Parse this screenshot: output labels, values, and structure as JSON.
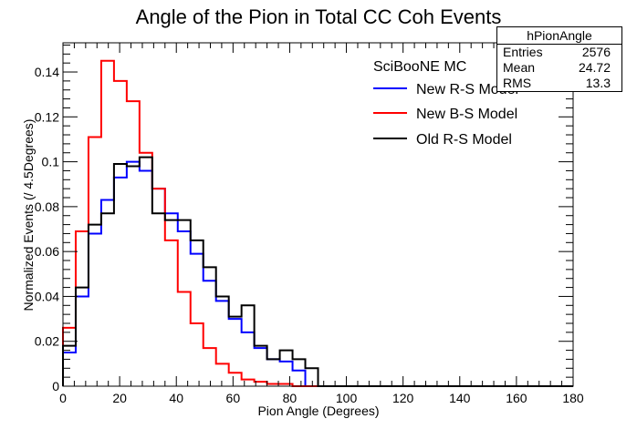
{
  "chart_data": {
    "type": "line",
    "title": "Angle of the Pion in Total CC Coh Events",
    "xlabel": "Pion Angle (Degrees)",
    "ylabel": "Normalized Events (/ 4.5Degrees)",
    "xlim": [
      0,
      180
    ],
    "ylim": [
      0,
      0.153
    ],
    "xticks": [
      0,
      20,
      40,
      60,
      80,
      100,
      120,
      140,
      160,
      180
    ],
    "yticks": [
      0,
      0.02,
      0.04,
      0.06,
      0.08,
      0.1,
      0.12,
      0.14
    ],
    "ytick_labels": [
      "0",
      "0.02",
      "0.04",
      "0.06",
      "0.08",
      "0.1",
      "0.12",
      "0.14"
    ],
    "bin_width": 4.5,
    "grid": false,
    "legend": {
      "position": "top-right",
      "header": "SciBooNE MC",
      "entries": [
        "New R-S Model",
        "New B-S Model",
        "Old R-S Model"
      ]
    },
    "stats": {
      "name": "hPionAngle",
      "rows": [
        {
          "label": "Entries",
          "value": "2576"
        },
        {
          "label": "Mean",
          "value": "24.72"
        },
        {
          "label": "RMS",
          "value": "13.3"
        }
      ]
    },
    "series": [
      {
        "name": "New R-S Model",
        "color": "#0000ff",
        "values": [
          0.015,
          0.04,
          0.068,
          0.083,
          0.093,
          0.1,
          0.096,
          0.088,
          0.077,
          0.069,
          0.059,
          0.047,
          0.038,
          0.03,
          0.024,
          0.017,
          0.012,
          0.011,
          0.007,
          0,
          0,
          0,
          0,
          0,
          0,
          0,
          0,
          0,
          0,
          0,
          0,
          0,
          0,
          0,
          0,
          0,
          0,
          0,
          0,
          0
        ]
      },
      {
        "name": "New B-S Model",
        "color": "#ff0000",
        "values": [
          0.026,
          0.069,
          0.111,
          0.145,
          0.136,
          0.127,
          0.104,
          0.088,
          0.065,
          0.042,
          0.028,
          0.017,
          0.01,
          0.006,
          0.003,
          0.002,
          0.001,
          0.001,
          0,
          0,
          0,
          0,
          0,
          0,
          0,
          0,
          0,
          0,
          0,
          0,
          0,
          0,
          0,
          0,
          0,
          0,
          0,
          0,
          0,
          0
        ]
      },
      {
        "name": "Old R-S Model",
        "color": "#000000",
        "values": [
          0.018,
          0.044,
          0.072,
          0.077,
          0.099,
          0.098,
          0.102,
          0.077,
          0.074,
          0.074,
          0.065,
          0.053,
          0.04,
          0.031,
          0.036,
          0.018,
          0.012,
          0.016,
          0.012,
          0.008,
          0,
          0,
          0,
          0,
          0,
          0,
          0,
          0,
          0,
          0,
          0,
          0,
          0,
          0,
          0,
          0,
          0,
          0,
          0,
          0
        ]
      }
    ]
  }
}
